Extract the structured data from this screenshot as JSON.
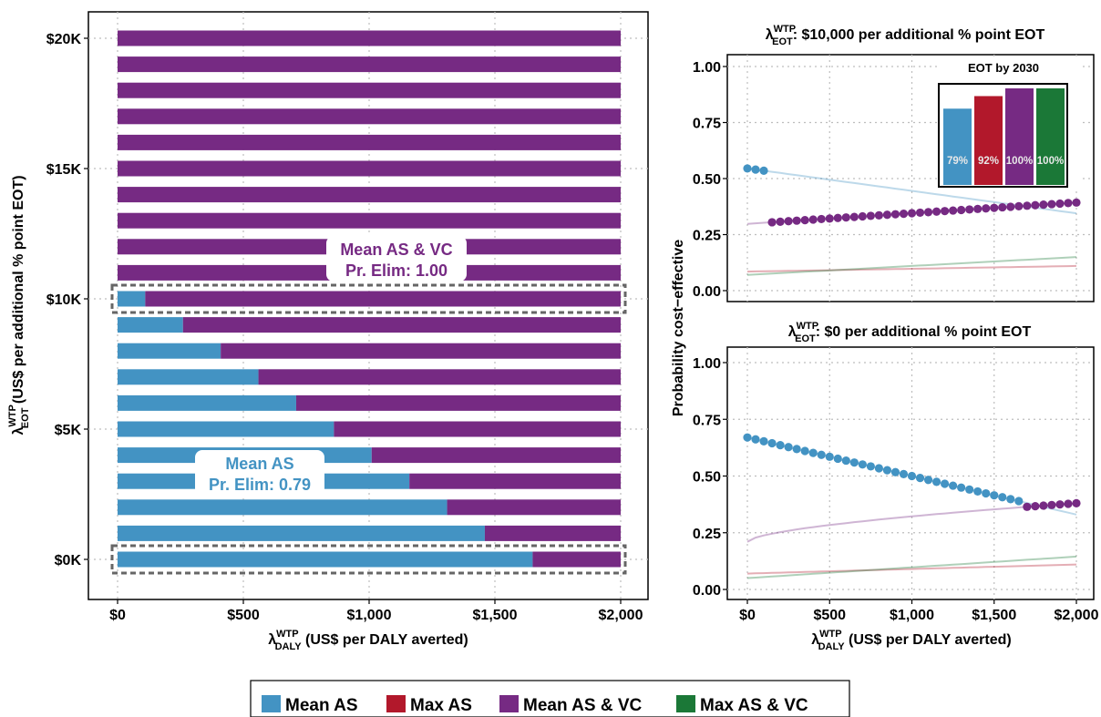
{
  "colors": {
    "mean_as": "#4393c3",
    "max_as": "#b2182b",
    "mean_as_vc": "#762a83",
    "max_as_vc": "#1b7837"
  },
  "legend": {
    "items": [
      {
        "key": "mean_as",
        "label": "Mean AS"
      },
      {
        "key": "max_as",
        "label": "Max AS"
      },
      {
        "key": "mean_as_vc",
        "label": "Mean AS & VC"
      },
      {
        "key": "max_as_vc",
        "label": "Max AS & VC"
      }
    ]
  },
  "shared": {
    "x_ticks": [
      "$0",
      "$500",
      "$1,000",
      "$1,500",
      "$2,000"
    ],
    "x_label_lambda": "λ",
    "x_label_sup": "WTP",
    "x_label_sub": "DALY",
    "x_label_rest": " (US$ per DALY averted)",
    "y_right_label": "Probability cost−effective"
  },
  "chart_data": [
    {
      "type": "bar",
      "orientation": "horizontal-stacked",
      "x_range": [
        0,
        2000
      ],
      "ylim": [
        0,
        20000
      ],
      "y_ticks": [
        "$0K",
        "$5K",
        "$10K",
        "$15K",
        "$20K"
      ],
      "ylabel_lambda": "λ",
      "ylabel_sup": "WTP",
      "ylabel_sub": "EOT",
      "ylabel_rest": " (US$ per additional % point EOT)",
      "grid": true,
      "categories": [
        0,
        1000,
        2000,
        3000,
        4000,
        5000,
        6000,
        7000,
        8000,
        9000,
        10000,
        11000,
        12000,
        13000,
        14000,
        15000,
        16000,
        17000,
        18000,
        19000,
        20000
      ],
      "series": [
        {
          "name": "Mean AS",
          "values": [
            1650,
            1460,
            1310,
            1160,
            1010,
            860,
            710,
            560,
            410,
            260,
            110,
            0,
            0,
            0,
            0,
            0,
            0,
            0,
            0,
            0,
            0
          ]
        },
        {
          "name": "Mean AS & VC",
          "values": [
            350,
            540,
            690,
            840,
            990,
            1140,
            1290,
            1440,
            1590,
            1740,
            1890,
            2000,
            2000,
            2000,
            2000,
            2000,
            2000,
            2000,
            2000,
            2000,
            2000
          ]
        }
      ],
      "highlighted_rows": [
        0,
        10000
      ],
      "annotations": [
        {
          "key": "ann_vc",
          "line1": "Mean AS & VC",
          "line2": "Pr. Elim: 1.00",
          "series": "mean_as_vc"
        },
        {
          "key": "ann_as",
          "line1": "Mean AS",
          "line2": "Pr. Elim: 0.79",
          "series": "mean_as"
        }
      ]
    },
    {
      "type": "line",
      "title_lambda": "λ",
      "title_sup": "WTP",
      "title_sub": "EOT",
      "title_rest": ": $10,000 per additional % point EOT",
      "xlim": [
        0,
        2000
      ],
      "ylim": [
        0,
        1
      ],
      "y_ticks": [
        "0.00",
        "0.25",
        "0.50",
        "0.75",
        "1.00"
      ],
      "grid": true,
      "x": [
        0,
        2000
      ],
      "series": [
        {
          "name": "Mean AS",
          "values": [
            0.545,
            0.345
          ],
          "optimal_x": [
            0,
            50,
            100
          ]
        },
        {
          "name": "Max AS",
          "values": [
            0.085,
            0.11
          ],
          "optimal_x": []
        },
        {
          "name": "Mean AS & VC",
          "values": [
            0.298,
            0.393
          ],
          "optimal_x": [
            150,
            200,
            250,
            300,
            350,
            400,
            450,
            500,
            550,
            600,
            650,
            700,
            750,
            800,
            850,
            900,
            950,
            1000,
            1050,
            1100,
            1150,
            1200,
            1250,
            1300,
            1350,
            1400,
            1450,
            1500,
            1550,
            1600,
            1650,
            1700,
            1750,
            1800,
            1850,
            1900,
            1950,
            2000
          ]
        },
        {
          "name": "Max AS & VC",
          "values": [
            0.07,
            0.15
          ],
          "optimal_x": []
        }
      ],
      "inset": {
        "type": "bar",
        "title": "EOT by 2030",
        "ylim": [
          0,
          1
        ],
        "bars": [
          {
            "key": "mean_as",
            "value": 0.79,
            "label": "79%"
          },
          {
            "key": "max_as",
            "value": 0.92,
            "label": "92%"
          },
          {
            "key": "mean_as_vc",
            "value": 1.0,
            "label": "100%"
          },
          {
            "key": "max_as_vc",
            "value": 1.0,
            "label": "100%"
          }
        ]
      }
    },
    {
      "type": "line",
      "title_lambda": "λ",
      "title_sup": "WTP",
      "title_sub": "EOT",
      "title_rest": ": $0 per additional % point EOT",
      "xlim": [
        0,
        2000
      ],
      "ylim": [
        0,
        1
      ],
      "y_ticks": [
        "0.00",
        "0.25",
        "0.50",
        "0.75",
        "1.00"
      ],
      "grid": true,
      "x": [
        0,
        2000
      ],
      "series": [
        {
          "name": "Mean AS",
          "values": [
            0.67,
            0.33
          ],
          "optimal_x": [
            0,
            50,
            100,
            150,
            200,
            250,
            300,
            350,
            400,
            450,
            500,
            550,
            600,
            650,
            700,
            750,
            800,
            850,
            900,
            950,
            1000,
            1050,
            1100,
            1150,
            1200,
            1250,
            1300,
            1350,
            1400,
            1450,
            1500,
            1550,
            1600,
            1650
          ]
        },
        {
          "name": "Max AS",
          "values": [
            0.07,
            0.11
          ],
          "optimal_x": []
        },
        {
          "name": "Mean AS & VC",
          "values": [
            0.21,
            0.38
          ],
          "curve": "sqrt",
          "optimal_x": [
            1700,
            1750,
            1800,
            1850,
            1900,
            1950,
            2000
          ]
        },
        {
          "name": "Max AS & VC",
          "values": [
            0.05,
            0.145
          ],
          "optimal_x": []
        }
      ]
    }
  ]
}
